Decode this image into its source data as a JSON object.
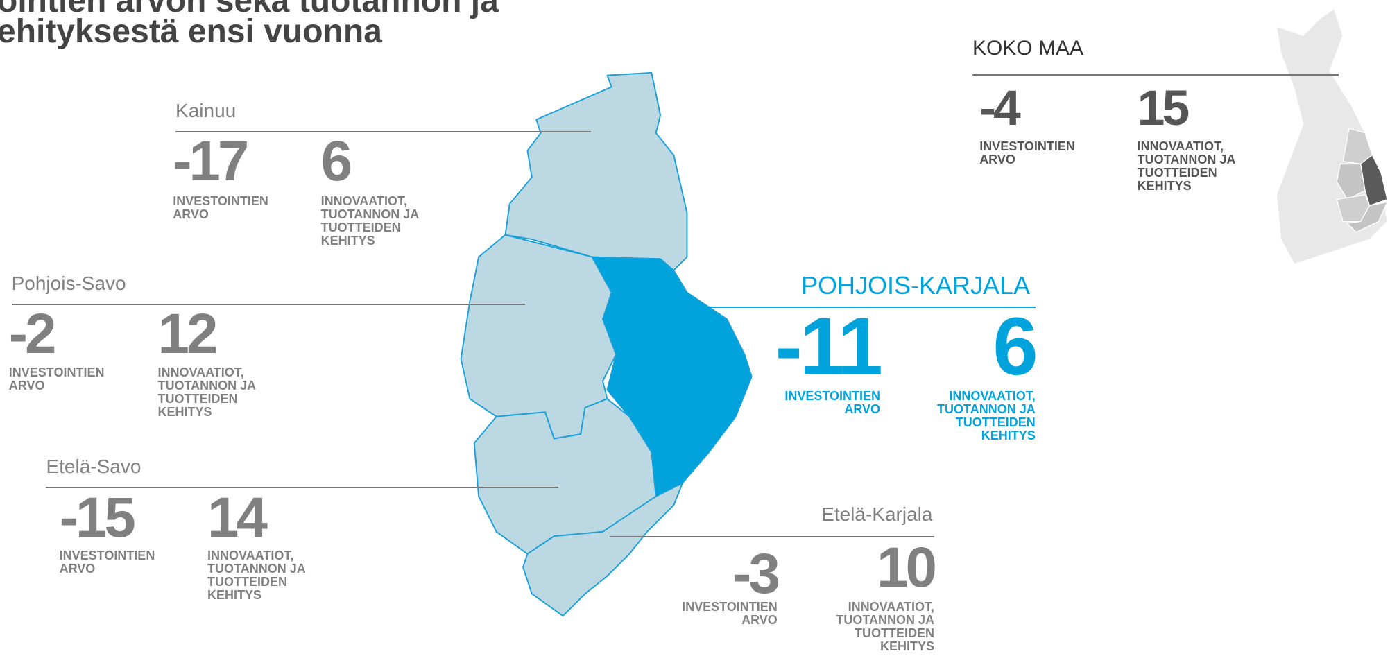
{
  "title": [
    "ointien arvon sekä tuotannon ja",
    "ehityksestä ensi vuonna"
  ],
  "labels": {
    "investments": "INVESTOINTIEN ARVO",
    "innovation": "INNOVAATIOT, TUOTANNON JA TUOTTEIDEN KEHITYS"
  },
  "regions": [
    {
      "name": "Kainuu",
      "investments": -17,
      "innovation": 6
    },
    {
      "name": "Pohjois-Savo",
      "investments": -2,
      "innovation": 12
    },
    {
      "name": "Etelä-Savo",
      "investments": -15,
      "innovation": 14
    },
    {
      "name": "Etelä-Karjala",
      "investments": -3,
      "innovation": 10
    },
    {
      "name": "POHJOIS-KARJALA",
      "investments": -11,
      "innovation": 6
    },
    {
      "name": "KOKO MAA",
      "investments": -4,
      "innovation": 15
    }
  ]
}
